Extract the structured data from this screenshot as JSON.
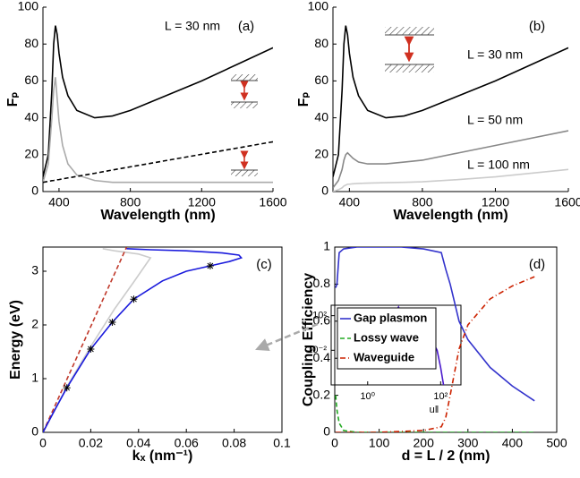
{
  "chart_data": [
    {
      "type": "line",
      "ylabel": "Fₚ",
      "xlabel": "Wavelength (nm)",
      "annotation": "L = 30 nm",
      "panel_label": "(a)",
      "x": [
        310,
        340,
        360,
        370,
        380,
        390,
        400,
        420,
        450,
        500,
        600,
        700,
        800,
        1000,
        1200,
        1400,
        1600
      ],
      "xlim": [
        310,
        1600
      ],
      "xticks": [
        400,
        800,
        1200,
        1600
      ],
      "ylim": [
        0,
        100
      ],
      "yticks": [
        0,
        20,
        40,
        60,
        80,
        100
      ],
      "series": [
        {
          "color": "#000000",
          "dash": "solid",
          "values": [
            8,
            20,
            55,
            80,
            90,
            85,
            75,
            62,
            52,
            44,
            40,
            41,
            44,
            52,
            60,
            69,
            78
          ]
        },
        {
          "color": "#aaaaaa",
          "dash": "solid",
          "values": [
            5,
            15,
            40,
            55,
            62,
            50,
            38,
            25,
            15,
            9,
            6,
            5,
            5,
            5,
            5,
            5,
            5
          ]
        },
        {
          "color": "#000000",
          "dash": "dashed",
          "values": [
            5,
            5.5,
            5.9,
            6,
            6.2,
            6.4,
            6.5,
            6.9,
            7.4,
            8.2,
            9.9,
            11.7,
            13.4,
            16.8,
            20.2,
            23.6,
            27
          ]
        }
      ]
    },
    {
      "type": "line",
      "ylabel": "Fₚ",
      "xlabel": "Wavelength (nm)",
      "panel_label": "(b)",
      "x": [
        310,
        340,
        360,
        370,
        380,
        390,
        400,
        420,
        450,
        500,
        600,
        700,
        800,
        1000,
        1200,
        1400,
        1600
      ],
      "xlim": [
        310,
        1600
      ],
      "xticks": [
        400,
        800,
        1200,
        1600
      ],
      "ylim": [
        0,
        100
      ],
      "yticks": [
        0,
        20,
        40,
        60,
        80,
        100
      ],
      "series": [
        {
          "name": "L = 30 nm",
          "color": "#000000",
          "dash": "solid",
          "values": [
            8,
            20,
            55,
            80,
            90,
            85,
            75,
            62,
            52,
            44,
            40,
            41,
            44,
            52,
            60,
            69,
            78
          ]
        },
        {
          "name": "L = 50 nm",
          "color": "#888888",
          "dash": "solid",
          "values": [
            2,
            6,
            12,
            17,
            20,
            21,
            20,
            18,
            16,
            15,
            15,
            16,
            17,
            21,
            25,
            29,
            33
          ]
        },
        {
          "name": "L = 100 nm",
          "color": "#cccccc",
          "dash": "solid",
          "values": [
            0,
            1,
            2,
            3,
            3.5,
            4,
            4,
            4.2,
            4.4,
            4.6,
            4.8,
            5,
            5.3,
            6.5,
            8,
            10,
            12
          ]
        }
      ]
    },
    {
      "type": "line",
      "ylabel": "Energy (eV)",
      "xlabel": "kₓ (nm⁻¹)",
      "panel_label": "(c)",
      "xlim": [
        0,
        0.1
      ],
      "xticks": [
        0,
        0.02,
        0.04,
        0.06,
        0.08,
        0.1
      ],
      "ylim": [
        0,
        3.45
      ],
      "yticks": [
        0,
        1,
        2,
        3
      ],
      "series": [
        {
          "color": "#cccccc",
          "dash": "solid",
          "x": [
            0,
            0.01,
            0.02,
            0.03,
            0.038,
            0.045,
            0.04,
            0.03,
            0.025
          ],
          "values": [
            0,
            0.85,
            1.6,
            2.3,
            2.8,
            3.25,
            3.32,
            3.38,
            3.42
          ]
        },
        {
          "color": "#c0392b",
          "dash": "dashed",
          "x": [
            0,
            0.035
          ],
          "values": [
            0,
            3.45
          ]
        },
        {
          "color": "#1a1adc",
          "dash": "solid",
          "x": [
            0,
            0.005,
            0.01,
            0.02,
            0.029,
            0.038,
            0.05,
            0.06,
            0.07,
            0.078,
            0.083,
            0.082,
            0.075,
            0.06,
            0.045,
            0.035
          ],
          "values": [
            0,
            0.42,
            0.83,
            1.55,
            2.05,
            2.48,
            2.82,
            3.0,
            3.1,
            3.18,
            3.25,
            3.3,
            3.34,
            3.38,
            3.4,
            3.42
          ]
        },
        {
          "color": "#000000",
          "marker": "star",
          "x": [
            0.01,
            0.02,
            0.029,
            0.038,
            0.07
          ],
          "values": [
            0.83,
            1.55,
            2.05,
            2.48,
            3.1
          ]
        }
      ]
    },
    {
      "type": "line",
      "xlabel": "u‖",
      "xscale": "log",
      "yscale": "log",
      "x": [
        0.2,
        0.5,
        1,
        2,
        4,
        6,
        7,
        8,
        10,
        20,
        40,
        60,
        80,
        100,
        120
      ],
      "xlim": [
        0.1,
        360
      ],
      "xticks": [
        {
          "value": 1,
          "label": "10⁰"
        },
        {
          "value": 100,
          "label": "10²"
        }
      ],
      "ylim": [
        1e-06,
        1600
      ],
      "yticks": [
        {
          "value": 0.01,
          "label": "10⁻²"
        },
        {
          "value": 100,
          "label": "10²"
        }
      ],
      "series": [
        {
          "color": "#4a1acc",
          "dash": "solid",
          "values": [
            0.5,
            0.7,
            1.5,
            5,
            40,
            300,
            1000,
            300,
            40,
            3,
            0.5,
            0.1,
            0.01,
            0.0001,
            1e-06
          ]
        }
      ]
    },
    {
      "type": "line",
      "ylabel": "Coupling Efficiency",
      "xlabel": "d = L / 2 (nm)",
      "panel_label": "(d)",
      "x": [
        2,
        5,
        10,
        20,
        50,
        100,
        150,
        200,
        240,
        250,
        260,
        280,
        300,
        350,
        400,
        450
      ],
      "xlim": [
        0,
        500
      ],
      "xticks": [
        0,
        100,
        200,
        300,
        400,
        500
      ],
      "ylim": [
        0,
        1
      ],
      "yticks": [
        0,
        0.2,
        0.4,
        0.6,
        0.8,
        1
      ],
      "series": [
        {
          "name": "Gap plasmon",
          "color": "#3333cc",
          "dash": "solid",
          "values": [
            0.78,
            0.8,
            0.97,
            0.99,
            1,
            1,
            1,
            0.99,
            0.97,
            0.88,
            0.8,
            0.6,
            0.5,
            0.35,
            0.25,
            0.17
          ]
        },
        {
          "name": "Lossy wave",
          "color": "#22aa22",
          "dash": "dashed",
          "values": [
            0.2,
            0.12,
            0.05,
            0.01,
            0,
            0,
            0,
            0,
            0,
            0,
            0,
            0,
            0,
            0,
            0,
            0
          ]
        },
        {
          "name": "Waveguide",
          "color": "#cc2200",
          "dash": "dashdot",
          "values": [
            0,
            0,
            0,
            0,
            0,
            0,
            0.005,
            0.01,
            0.03,
            0.08,
            0.2,
            0.45,
            0.58,
            0.72,
            0.79,
            0.84
          ]
        }
      ]
    }
  ]
}
